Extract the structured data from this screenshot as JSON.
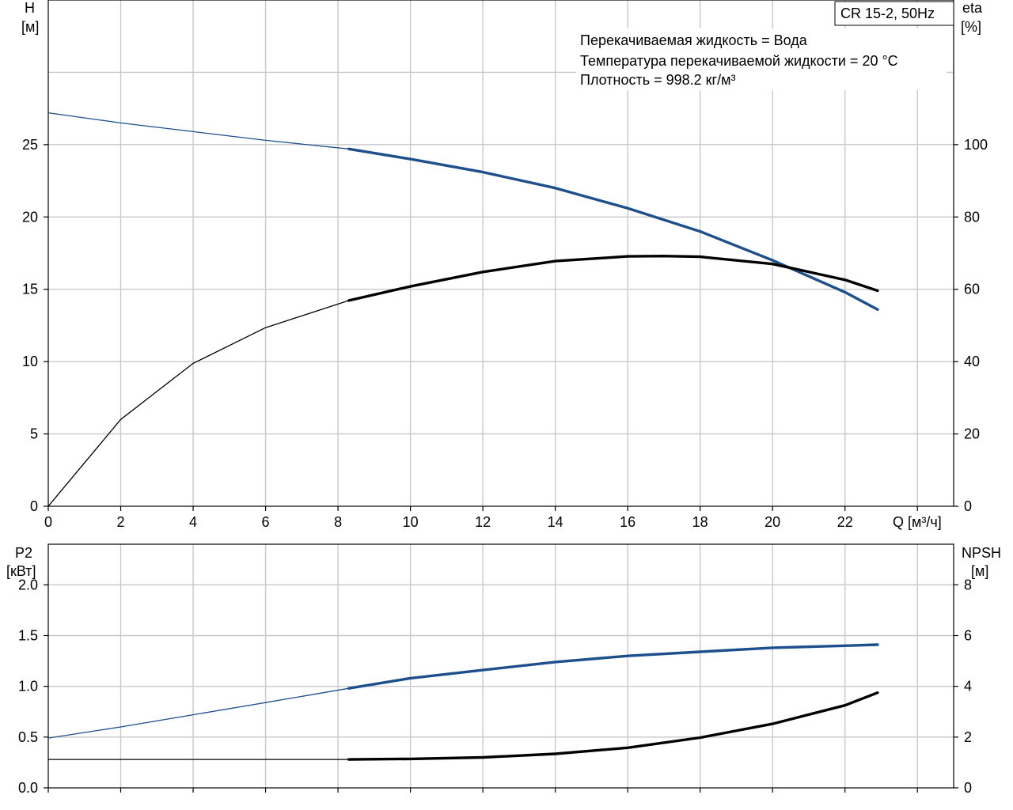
{
  "chart_data": [
    {
      "type": "line",
      "panel": "top",
      "title_box": "CR 15-2, 50Hz",
      "info_lines": [
        "Перекачиваемая жидкость = Вода",
        "Температура перекачиваемой жидкости = 20 °C",
        "Плотность = 998.2 кг/м³"
      ],
      "xlabel": "Q [м³/ч]",
      "x_ticks": [
        0,
        2,
        4,
        6,
        8,
        10,
        12,
        14,
        16,
        18,
        20,
        22
      ],
      "xlim": [
        0,
        25
      ],
      "left_axis": {
        "label_line1": "H",
        "label_line2": "[м]",
        "ylim": [
          0,
          35
        ],
        "ticks": [
          0,
          5,
          10,
          15,
          20,
          25
        ]
      },
      "right_axis": {
        "label_line1": "eta",
        "label_line2": "[%]",
        "ylim": [
          0,
          140
        ],
        "ticks": [
          0,
          20,
          40,
          60,
          80,
          100
        ]
      },
      "grid": true,
      "series": [
        {
          "key": "head",
          "axis": "left",
          "color": "#1c4f8c",
          "x": [
            0,
            2,
            4,
            6,
            8.3,
            10,
            12,
            14,
            16,
            18,
            20,
            22,
            22.9
          ],
          "y": [
            27.2,
            26.5,
            25.9,
            25.3,
            24.7,
            24.0,
            23.1,
            22.0,
            20.6,
            19.0,
            17.0,
            14.8,
            13.6
          ],
          "thick_from": 8.3
        },
        {
          "key": "efficiency",
          "axis": "right",
          "color": "#000000",
          "x": [
            0,
            2,
            4,
            6,
            8.3,
            10,
            12,
            14,
            16,
            17,
            18,
            20,
            22,
            22.9
          ],
          "y": [
            0,
            24,
            39.5,
            49.4,
            56.9,
            60.8,
            64.8,
            67.8,
            69.1,
            69.2,
            69.0,
            67.0,
            62.6,
            59.6
          ],
          "thick_from": 8.3
        }
      ]
    },
    {
      "type": "line",
      "panel": "bottom",
      "left_axis": {
        "label_line1": "P2",
        "label_line2": "[кВт]",
        "ylim": [
          0,
          2.4
        ],
        "ticks": [
          0.0,
          0.5,
          1.0,
          1.5,
          2.0
        ],
        "tick_labels": [
          "0.0",
          "0.5",
          "1.0",
          "1.5",
          "2.0"
        ]
      },
      "right_axis": {
        "label_line1": "NPSH",
        "label_line2": "[м]",
        "ylim": [
          0,
          9.6
        ],
        "ticks": [
          0,
          2,
          4,
          6,
          8
        ]
      },
      "xlim": [
        0,
        25
      ],
      "grid": true,
      "series": [
        {
          "key": "power",
          "axis": "left",
          "color": "#1c4f8c",
          "x": [
            0,
            2,
            4,
            6,
            8.3,
            10,
            12,
            14,
            16,
            18,
            20,
            22,
            22.9
          ],
          "y": [
            0.49,
            0.6,
            0.72,
            0.84,
            0.98,
            1.08,
            1.16,
            1.24,
            1.3,
            1.34,
            1.38,
            1.4,
            1.41
          ],
          "thick_from": 8.3
        },
        {
          "key": "npsh",
          "axis": "right",
          "color": "#000000",
          "x": [
            0,
            4,
            8.3,
            10,
            12,
            14,
            16,
            18,
            20,
            22,
            22.9
          ],
          "y": [
            1.12,
            1.12,
            1.12,
            1.14,
            1.2,
            1.34,
            1.58,
            1.98,
            2.52,
            3.25,
            3.75
          ],
          "thick_from": 8.3
        }
      ]
    }
  ]
}
